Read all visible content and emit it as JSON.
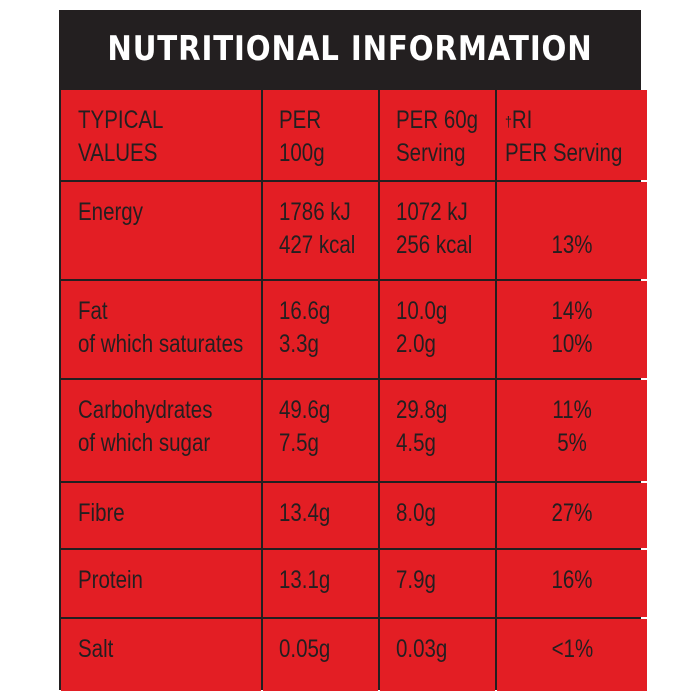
{
  "title": "NUTRITIONAL INFORMATION",
  "columns": {
    "c1": [
      "TYPICAL",
      "VALUES"
    ],
    "c2": [
      "PER",
      "100g"
    ],
    "c3": [
      "PER 60g",
      "Serving"
    ],
    "c4_dagger": "†",
    "c4": [
      "RI",
      "PER Serving"
    ]
  },
  "rows": [
    {
      "label": [
        "Energy"
      ],
      "per100": [
        "1786 kJ",
        "427 kcal"
      ],
      "per60": [
        "1072 kJ",
        "256 kcal"
      ],
      "ri": [
        "13%"
      ]
    },
    {
      "label": [
        "Fat",
        "of which saturates"
      ],
      "per100": [
        "16.6g",
        "3.3g"
      ],
      "per60": [
        "10.0g",
        "2.0g"
      ],
      "ri": [
        "14%",
        "10%"
      ]
    },
    {
      "label": [
        "Carbohydrates",
        "of which sugar"
      ],
      "per100": [
        "49.6g",
        "7.5g"
      ],
      "per60": [
        "29.8g",
        "4.5g"
      ],
      "ri": [
        "11%",
        "5%"
      ]
    },
    {
      "label": [
        "Fibre"
      ],
      "per100": [
        "13.4g"
      ],
      "per60": [
        "8.0g"
      ],
      "ri": [
        "27%"
      ]
    },
    {
      "label": [
        "Protein"
      ],
      "per100": [
        "13.1g"
      ],
      "per60": [
        "7.9g"
      ],
      "ri": [
        "16%"
      ]
    },
    {
      "label": [
        "Salt"
      ],
      "per100": [
        "0.05g"
      ],
      "per60": [
        "0.03g"
      ],
      "ri": [
        "<1%"
      ]
    }
  ],
  "colors": {
    "background": "#e31e24",
    "header": "#231f20",
    "text": "#231f20",
    "header_text": "#ffffff"
  }
}
